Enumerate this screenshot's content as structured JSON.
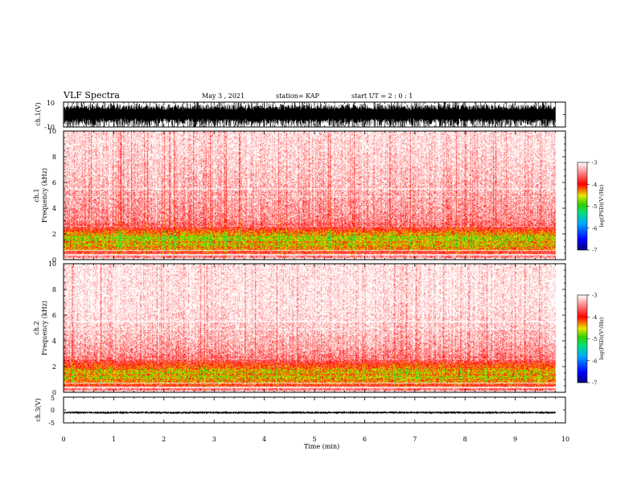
{
  "header": {
    "title": "VLF Spectra",
    "date": "May 3 , 2021",
    "station": "station= KAP",
    "start": "start  UT =  2 : 0  : 1"
  },
  "colors": {
    "cmap": [
      "#00007f",
      "#0000ff",
      "#00a8ff",
      "#00e080",
      "#30d000",
      "#e8e800",
      "#ff0000",
      "#ff9999",
      "#ffffff"
    ],
    "accent": "#ff0000",
    "axis": "#000000"
  },
  "chart_data": [
    {
      "type": "line",
      "name": "ch1-waveform",
      "ylabel": "ch.1(V)",
      "ylim": [
        -10,
        10
      ],
      "y_ticks": [
        "10",
        "-10"
      ],
      "xlim": [
        0,
        10
      ],
      "data_extent_min": 9.8,
      "envelope_volts": [
        -10,
        10
      ],
      "description_values": {
        "typical_amplitude": 8,
        "peak": 10
      }
    },
    {
      "type": "heatmap",
      "name": "ch1-spectrogram",
      "ylabel_top": "ch.1",
      "ylabel": "Frequency (kHz)",
      "ylim": [
        0,
        10
      ],
      "y_ticks": [
        "0",
        "2",
        "4",
        "6",
        "8",
        "10"
      ],
      "xlim": [
        0,
        10
      ],
      "data_extent_min": 9.8,
      "colorbar": {
        "label": "log(PSD)(V²/Hz)",
        "range": [
          -7,
          -3
        ],
        "ticks": [
          "-3",
          "-4",
          "-5",
          "-6",
          "-7"
        ]
      },
      "freq_profile_khz": [
        0,
        0.3,
        0.6,
        0.9,
        1.2,
        1.5,
        1.8,
        2.1,
        2.5,
        3.0,
        4.0,
        5.0,
        6.0,
        7.0,
        8.0,
        9.0,
        10.0
      ],
      "freq_profile_logpsd": [
        -3.3,
        -3.6,
        -4.0,
        -4.4,
        -4.5,
        -4.6,
        -4.6,
        -4.2,
        -3.7,
        -3.45,
        -3.35,
        -3.3,
        -3.2,
        -3.15,
        -3.1,
        -3.05,
        -3.05
      ]
    },
    {
      "type": "heatmap",
      "name": "ch2-spectrogram",
      "ylabel_top": "ch.2",
      "ylabel": "Frequency (kHz)",
      "ylim": [
        0,
        10
      ],
      "y_ticks": [
        "0",
        "2",
        "4",
        "6",
        "8",
        "10"
      ],
      "xlim": [
        0,
        10
      ],
      "data_extent_min": 9.8,
      "colorbar": {
        "label": "log(PSD)(V²/Hz)",
        "range": [
          -7,
          -3
        ],
        "ticks": [
          "-3",
          "-4",
          "-5",
          "-6",
          "-7"
        ]
      },
      "freq_profile_khz": [
        0,
        0.3,
        0.6,
        0.9,
        1.2,
        1.5,
        1.8,
        2.1,
        2.5,
        3.0,
        4.0,
        5.0,
        6.0,
        7.0,
        8.0,
        9.0,
        10.0
      ],
      "freq_profile_logpsd": [
        -3.3,
        -3.7,
        -4.1,
        -4.4,
        -4.5,
        -4.5,
        -4.3,
        -4.0,
        -3.6,
        -3.4,
        -3.25,
        -3.15,
        -3.05,
        -3.0,
        -3.0,
        -3.0,
        -3.0
      ]
    },
    {
      "type": "line",
      "name": "ch3-waveform",
      "ylabel": "ch.3(V)",
      "ylim": [
        -5,
        5
      ],
      "y_ticks": [
        "5",
        "0",
        "-5"
      ],
      "xlim": [
        0,
        10
      ],
      "data_extent_min": 9.8,
      "envelope_volts": [
        -1.3,
        -0.7
      ]
    }
  ],
  "xaxis": {
    "label": "Time (min)",
    "ticks": [
      "0",
      "1",
      "2",
      "3",
      "4",
      "5",
      "6",
      "7",
      "8",
      "9",
      "10"
    ]
  }
}
